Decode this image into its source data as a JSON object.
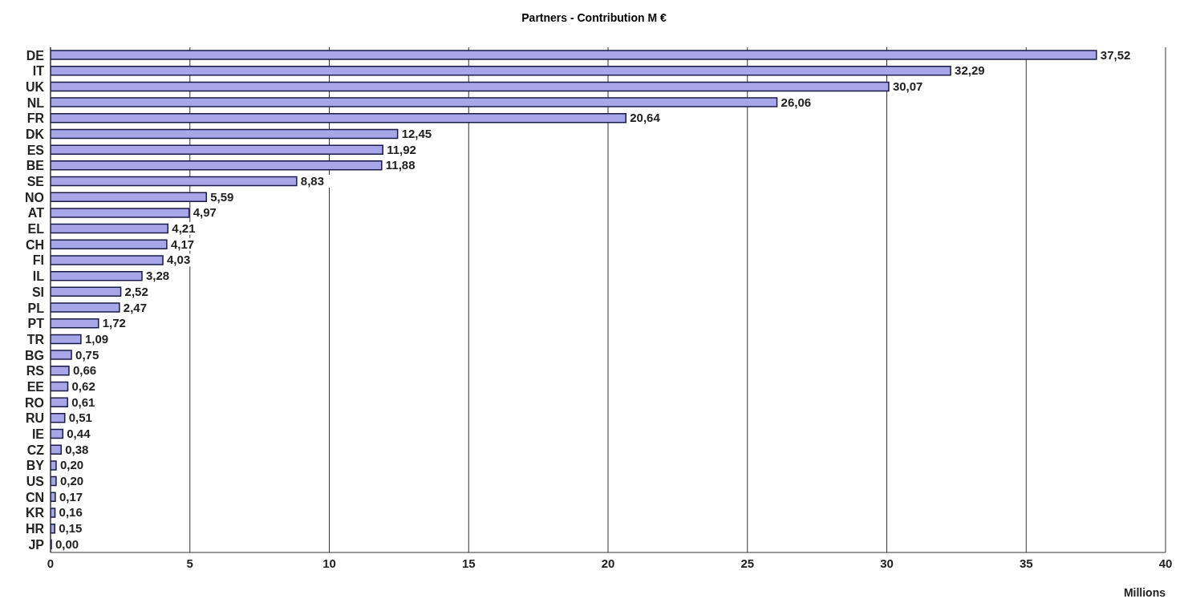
{
  "chart_data": {
    "type": "bar",
    "orientation": "horizontal",
    "title": "Partners - Contribution M €",
    "xlabel": "Millions",
    "categories": [
      "DE",
      "IT",
      "UK",
      "NL",
      "FR",
      "DK",
      "ES",
      "BE",
      "SE",
      "NO",
      "AT",
      "EL",
      "CH",
      "FI",
      "IL",
      "SI",
      "PL",
      "PT",
      "TR",
      "BG",
      "RS",
      "EE",
      "RO",
      "RU",
      "IE",
      "CZ",
      "BY",
      "US",
      "CN",
      "KR",
      "HR",
      "JP"
    ],
    "values": [
      37.52,
      32.29,
      30.07,
      26.06,
      20.64,
      12.45,
      11.92,
      11.88,
      8.83,
      5.59,
      4.97,
      4.21,
      4.17,
      4.03,
      3.28,
      2.52,
      2.47,
      1.72,
      1.09,
      0.75,
      0.66,
      0.62,
      0.61,
      0.51,
      0.44,
      0.38,
      0.2,
      0.2,
      0.17,
      0.16,
      0.15,
      0.0
    ],
    "value_labels": [
      "37,52",
      "32,29",
      "30,07",
      "26,06",
      "20,64",
      "12,45",
      "11,92",
      "11,88",
      "8,83",
      "5,59",
      "4,97",
      "4,21",
      "4,17",
      "4,03",
      "3,28",
      "2,52",
      "2,47",
      "1,72",
      "1,09",
      "0,75",
      "0,66",
      "0,62",
      "0,61",
      "0,51",
      "0,44",
      "0,38",
      "0,20",
      "0,20",
      "0,17",
      "0,16",
      "0,15",
      "0,00"
    ],
    "color": "#a6a6e8",
    "xlim": [
      0,
      40
    ],
    "xticks": [
      0,
      5,
      10,
      15,
      20,
      25,
      30,
      35,
      40
    ],
    "grid": "x",
    "legend": false
  }
}
